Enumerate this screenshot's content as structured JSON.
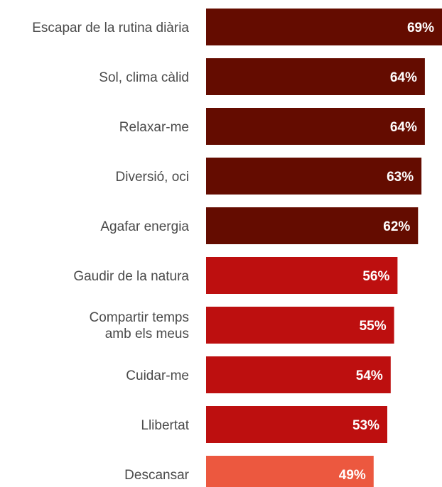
{
  "chart_data": {
    "type": "bar",
    "orientation": "horizontal",
    "categories": [
      "Escapar de la rutina diària",
      "Sol, clima càlid",
      "Relaxar-me",
      "Diversió, oci",
      "Agafar energia",
      "Gaudir de la natura",
      "Compartir temps amb els meus",
      "Cuidar-me",
      "Llibertat",
      "Descansar"
    ],
    "values": [
      69,
      64,
      64,
      63,
      62,
      56,
      55,
      54,
      53,
      49
    ],
    "value_labels": [
      "69%",
      "64%",
      "64%",
      "63%",
      "62%",
      "56%",
      "55%",
      "54%",
      "53%",
      "49%"
    ],
    "unit": "%",
    "xlim": [
      0,
      69
    ],
    "grid": false,
    "legend": "none",
    "colors": {
      "dark": "#640c00",
      "mid": "#bd0f0f",
      "light": "#ec583f"
    },
    "bar_color_groups": [
      "dark",
      "dark",
      "dark",
      "dark",
      "dark",
      "mid",
      "mid",
      "mid",
      "mid",
      "light"
    ]
  }
}
